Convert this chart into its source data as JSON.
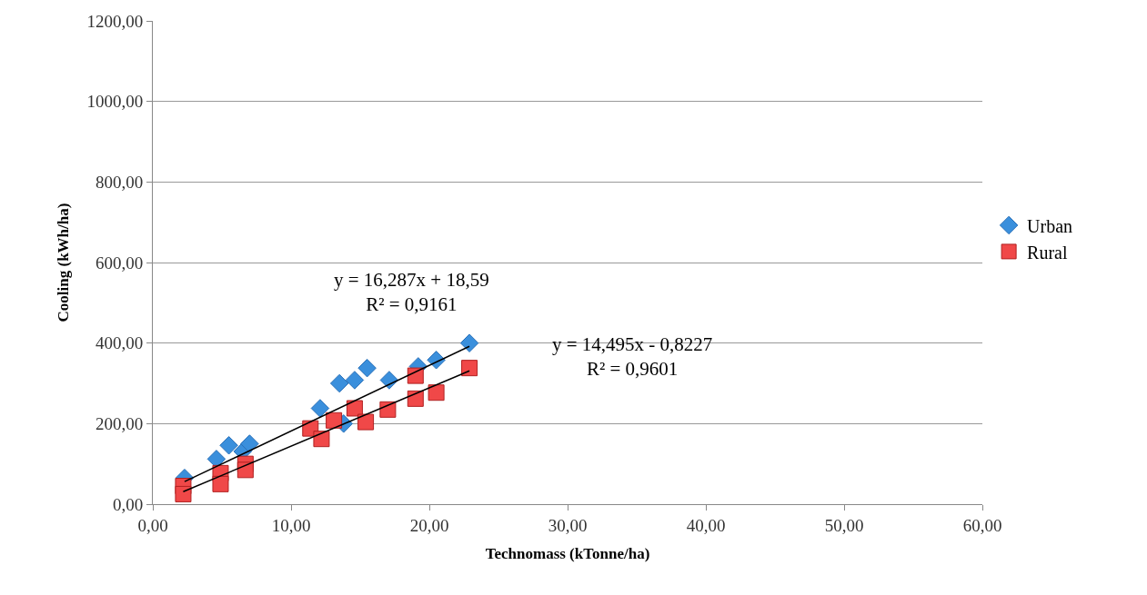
{
  "chart_data": {
    "type": "scatter",
    "xlabel": "Technomass (kTonne/ha)",
    "ylabel": "Cooling (kWh/ha)",
    "xlim": [
      0,
      60
    ],
    "ylim": [
      0,
      1200
    ],
    "xticks": [
      {
        "value": 0,
        "label": "0,00"
      },
      {
        "value": 10,
        "label": "10,00"
      },
      {
        "value": 20,
        "label": "20,00"
      },
      {
        "value": 30,
        "label": "30,00"
      },
      {
        "value": 40,
        "label": "40,00"
      },
      {
        "value": 50,
        "label": "50,00"
      },
      {
        "value": 60,
        "label": "60,00"
      }
    ],
    "yticks": [
      {
        "value": 0,
        "label": "0,00"
      },
      {
        "value": 200,
        "label": "200,00"
      },
      {
        "value": 400,
        "label": "400,00"
      },
      {
        "value": 600,
        "label": "600,00"
      },
      {
        "value": 800,
        "label": "800,00"
      },
      {
        "value": 1000,
        "label": "1000,00"
      },
      {
        "value": 1200,
        "label": "1200,00"
      }
    ],
    "grid": "y",
    "legend": "right",
    "series": [
      {
        "name": "Urban",
        "color": "#3a8fdc",
        "marker": "diamond",
        "x": [
          2.3,
          4.6,
          5.5,
          6.5,
          7.0,
          12.1,
          13.5,
          13.8,
          14.6,
          15.5,
          17.1,
          19.2,
          20.5,
          22.9
        ],
        "values": [
          65,
          112,
          146,
          131,
          150,
          238,
          300,
          200,
          308,
          338,
          308,
          342,
          358,
          400
        ]
      },
      {
        "name": "Rural",
        "color": "#f04848",
        "marker": "square",
        "x": [
          2.2,
          2.2,
          4.9,
          4.9,
          6.7,
          6.7,
          11.4,
          12.2,
          13.1,
          14.6,
          15.4,
          17.0,
          19.0,
          19.0,
          20.5,
          22.9
        ],
        "values": [
          45,
          25,
          77,
          50,
          100,
          85,
          188,
          162,
          208,
          238,
          204,
          235,
          319,
          262,
          277,
          338
        ]
      },
      {
        "type": "line",
        "color": "#000000",
        "marker": "none",
        "x": [
          2.3,
          22.9
        ],
        "values": [
          56,
          392
        ]
      },
      {
        "type": "line",
        "color": "#000000",
        "marker": "none",
        "x": [
          2.2,
          22.9
        ],
        "values": [
          31,
          331
        ]
      }
    ],
    "annotations": [
      "y = 16,287x + 18,59\nR² = 0,9161",
      "y = 14,495x - 0,8227\nR² = 0,9601"
    ]
  }
}
